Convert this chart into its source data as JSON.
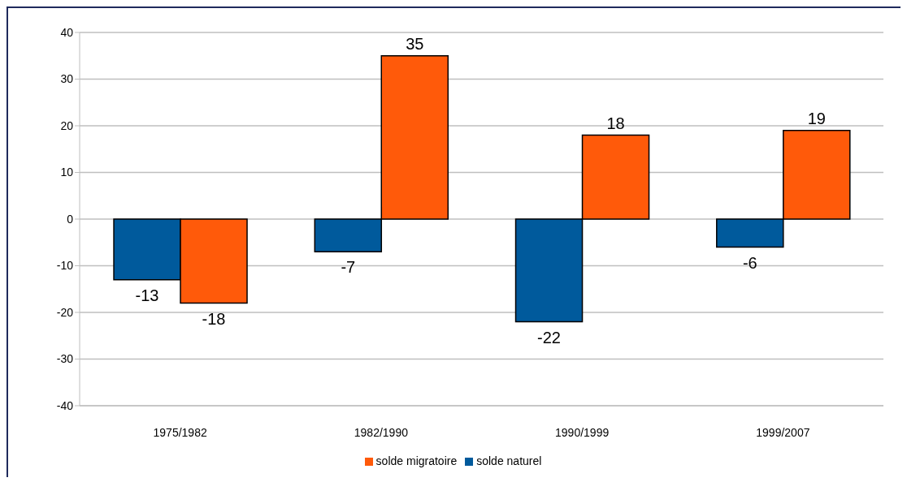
{
  "chart_data": {
    "type": "bar",
    "categories": [
      "1975/1982",
      "1982/1990",
      "1990/1999",
      "1999/2007"
    ],
    "series": [
      {
        "name": "solde naturel",
        "color": "#005a9c",
        "values": [
          -13,
          -7,
          -22,
          -6
        ]
      },
      {
        "name": "solde migratoire",
        "color": "#ff5a0a",
        "values": [
          -18,
          35,
          18,
          19
        ]
      }
    ],
    "ylim": [
      -40,
      40
    ],
    "yticks": [
      -40,
      -30,
      -20,
      -10,
      0,
      10,
      20,
      30,
      40
    ],
    "grid": "y",
    "legend": "bottom",
    "data_labels": true
  }
}
